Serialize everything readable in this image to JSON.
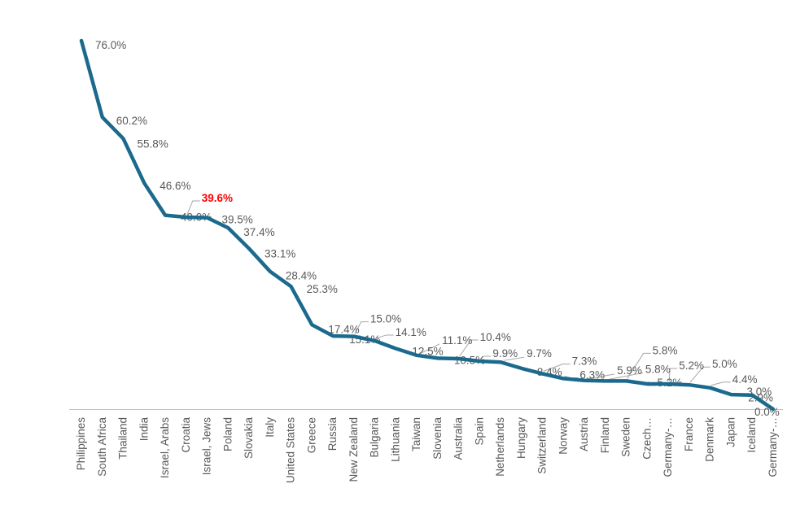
{
  "chart_data": {
    "type": "line",
    "title": "",
    "xlabel": "",
    "ylabel": "",
    "ylim": [
      0,
      80
    ],
    "grid": false,
    "legend": "none",
    "categories": [
      "Philippines",
      "South Africa",
      "Thailand",
      "India",
      "Israel, Arabs",
      "Croatia",
      "Israel, Jews",
      "Poland",
      "Slovakia",
      "Italy",
      "United States",
      "Greece",
      "Russia",
      "New Zealand",
      "Bulgaria",
      "Lithuania",
      "Taiwan",
      "Slovenia",
      "Australia",
      "Spain",
      "Netherlands",
      "Hungary",
      "Switzerland",
      "Norway",
      "Austria",
      "Finland",
      "Sweden",
      "Czech…",
      "Germany-…",
      "France",
      "Denmark",
      "Japan",
      "Iceland",
      "Germany-…"
    ],
    "values": [
      76.0,
      60.2,
      55.8,
      46.6,
      40.0,
      39.6,
      39.5,
      37.4,
      33.1,
      28.4,
      25.3,
      17.4,
      15.1,
      15.0,
      14.1,
      12.5,
      11.1,
      10.5,
      10.4,
      9.9,
      9.7,
      8.4,
      7.3,
      6.3,
      5.9,
      5.8,
      5.8,
      5.2,
      5.2,
      5.0,
      4.4,
      3.0,
      2.9,
      0.0
    ],
    "data_labels": [
      "76.0%",
      "60.2%",
      "55.8%",
      "46.6%",
      "40.0%",
      "39.6%",
      "39.5%",
      "37.4%",
      "33.1%",
      "28.4%",
      "25.3%",
      "17.4%",
      "15.1%",
      "15.0%",
      "14.1%",
      "12.5%",
      "11.1%",
      "10.5%",
      "10.4%",
      "9.9%",
      "9.7%",
      "8.4%",
      "7.3%",
      "6.3%",
      "5.9%",
      "5.8%",
      "5.8%",
      "5.2%",
      "5.2%",
      "5.0%",
      "4.4%",
      "3.0%",
      "2.9%",
      "0.0%"
    ],
    "highlight": {
      "index": 5,
      "category": "Croatia",
      "label": "39.6%",
      "color": "#FF0000",
      "bold": true
    },
    "colors": {
      "line": "#1B6A8E",
      "data_label": "#595959",
      "axis_label": "#595959",
      "axis_line": "#BFBFBF",
      "leader_line": "#A6A6A6",
      "background": "#FFFFFF"
    },
    "label_layout": [
      [
        17,
        5,
        0
      ],
      [
        17,
        4,
        0
      ],
      [
        17,
        6,
        0
      ],
      [
        19,
        3,
        0
      ],
      [
        19,
        2,
        0
      ],
      [
        19,
        -24,
        1
      ],
      [
        18,
        2,
        0
      ],
      [
        19,
        5,
        0
      ],
      [
        19,
        6,
        0
      ],
      [
        19,
        5,
        0
      ],
      [
        19,
        3,
        0
      ],
      [
        20,
        5,
        0
      ],
      [
        20,
        4,
        0
      ],
      [
        20,
        -22,
        1
      ],
      [
        25,
        -11,
        1
      ],
      [
        20,
        3,
        0
      ],
      [
        31,
        -19,
        2
      ],
      [
        20,
        2,
        0
      ],
      [
        26,
        -27,
        1
      ],
      [
        16,
        -10,
        1
      ],
      [
        32,
        -11,
        2
      ],
      [
        19,
        4,
        0
      ],
      [
        36,
        -16,
        1
      ],
      [
        20,
        -5,
        1
      ],
      [
        40,
        -13,
        2
      ],
      [
        49,
        -15,
        2
      ],
      [
        32,
        -38,
        1
      ],
      [
        12,
        -2,
        1
      ],
      [
        13,
        -23,
        1
      ],
      [
        28,
        -26,
        1
      ],
      [
        27,
        -11,
        1
      ],
      [
        19,
        -4,
        0
      ],
      [
        -5,
        3,
        0
      ],
      [
        -23,
        3,
        0
      ]
    ]
  }
}
